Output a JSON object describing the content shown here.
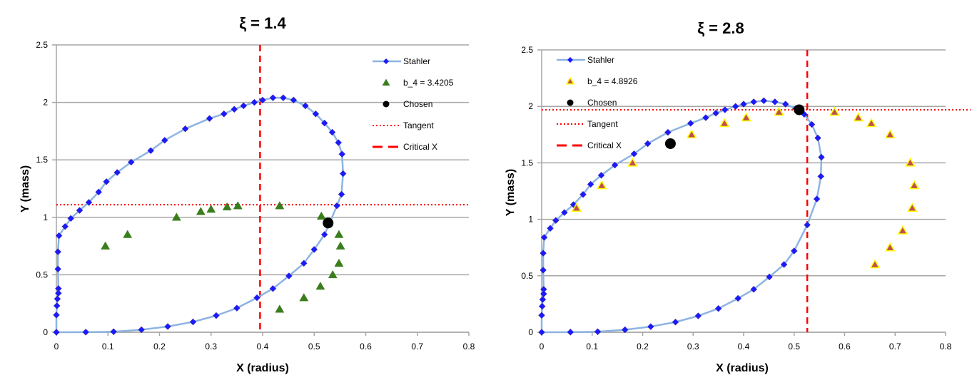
{
  "chart_data": [
    {
      "type": "scatter",
      "title": "ξ = 1.4",
      "xlabel": "X (radius)",
      "ylabel": "Y (mass)",
      "xlim": [
        0,
        0.8
      ],
      "ylim": [
        0,
        2.5
      ],
      "xticks": [
        "0",
        "0.1",
        "0.2",
        "0.3",
        "0.4",
        "0.5",
        "0.6",
        "0.7",
        "0.8"
      ],
      "yticks": [
        "0",
        "0.5",
        "1",
        "1.5",
        "2",
        "2.5"
      ],
      "grid": "horizontal",
      "legend_position": "top-right",
      "legend": [
        "Stahler",
        "b_4 = 3.4205",
        "Chosen",
        "Tangent",
        "Critical X"
      ],
      "series": [
        {
          "name": "Stahler",
          "style": "line-diamond",
          "color": "#1a1aff",
          "line_color": "#8db4e2",
          "points": [
            [
              0,
              0
            ],
            [
              0.057,
              0.001
            ],
            [
              0.111,
              0.005
            ],
            [
              0.165,
              0.022
            ],
            [
              0.216,
              0.05
            ],
            [
              0.265,
              0.09
            ],
            [
              0.31,
              0.145
            ],
            [
              0.35,
              0.21
            ],
            [
              0.389,
              0.3
            ],
            [
              0.42,
              0.38
            ],
            [
              0.451,
              0.49
            ],
            [
              0.48,
              0.6
            ],
            [
              0.5,
              0.72
            ],
            [
              0.52,
              0.85
            ],
            [
              0.53,
              0.95
            ],
            [
              0.544,
              1.1
            ],
            [
              0.553,
              1.2
            ],
            [
              0.556,
              1.38
            ],
            [
              0.554,
              1.55
            ],
            [
              0.547,
              1.65
            ],
            [
              0.535,
              1.74
            ],
            [
              0.52,
              1.82
            ],
            [
              0.503,
              1.9
            ],
            [
              0.483,
              1.97
            ],
            [
              0.46,
              2.02
            ],
            [
              0.44,
              2.04
            ],
            [
              0.42,
              2.04
            ],
            [
              0.4,
              2.02
            ],
            [
              0.384,
              2.0
            ],
            [
              0.363,
              1.97
            ],
            [
              0.345,
              1.94
            ],
            [
              0.325,
              1.9
            ],
            [
              0.297,
              1.86
            ],
            [
              0.25,
              1.77
            ],
            [
              0.21,
              1.67
            ],
            [
              0.183,
              1.58
            ],
            [
              0.145,
              1.48
            ],
            [
              0.118,
              1.39
            ],
            [
              0.097,
              1.31
            ],
            [
              0.082,
              1.22
            ],
            [
              0.063,
              1.13
            ],
            [
              0.045,
              1.06
            ],
            [
              0.028,
              0.99
            ],
            [
              0.017,
              0.92
            ],
            [
              0.005,
              0.84
            ],
            [
              0.003,
              0.7
            ],
            [
              0.003,
              0.55
            ],
            [
              0.004,
              0.38
            ],
            [
              0.004,
              0.34
            ],
            [
              0.002,
              0.29
            ],
            [
              0.001,
              0.23
            ],
            [
              0,
              0.15
            ],
            [
              0,
              0
            ]
          ]
        },
        {
          "name": "b_4 = 3.4205",
          "style": "triangle",
          "color": "#3a7d1c",
          "points": [
            [
              0.095,
              0.75
            ],
            [
              0.138,
              0.85
            ],
            [
              0.233,
              1.0
            ],
            [
              0.28,
              1.05
            ],
            [
              0.3,
              1.07
            ],
            [
              0.331,
              1.09
            ],
            [
              0.352,
              1.1
            ],
            [
              0.433,
              1.1
            ],
            [
              0.514,
              1.01
            ],
            [
              0.548,
              0.85
            ],
            [
              0.551,
              0.75
            ],
            [
              0.548,
              0.6
            ],
            [
              0.536,
              0.5
            ],
            [
              0.512,
              0.4
            ],
            [
              0.48,
              0.3
            ],
            [
              0.433,
              0.2
            ]
          ]
        },
        {
          "name": "Chosen",
          "style": "circle",
          "color": "#000000",
          "points": [
            [
              0.527,
              0.95
            ]
          ]
        },
        {
          "name": "Tangent",
          "style": "dotted-hline",
          "color": "#ff0000",
          "y": 1.11
        },
        {
          "name": "Critical X",
          "style": "dashed-vline",
          "color": "#ff0000",
          "x": 0.395
        }
      ]
    },
    {
      "type": "scatter",
      "title": "ξ = 2.8",
      "xlabel": "X (radius)",
      "ylabel": "Y (mass)",
      "xlim": [
        0,
        0.8
      ],
      "ylim": [
        0,
        2.5
      ],
      "xticks": [
        "0",
        "0.1",
        "0.2",
        "0.3",
        "0.4",
        "0.5",
        "0.6",
        "0.7",
        "0.8"
      ],
      "yticks": [
        "0",
        "0.5",
        "1",
        "1.5",
        "2",
        "2.5"
      ],
      "grid": "horizontal",
      "legend_position": "top-left",
      "legend": [
        "Stahler",
        "b_4 = 4.8926",
        "Chosen",
        "Tangent",
        "Critical X"
      ],
      "series": [
        {
          "name": "Stahler",
          "style": "line-diamond",
          "color": "#1a1aff",
          "line_color": "#8db4e2",
          "points": [
            [
              0,
              0
            ],
            [
              0.057,
              0.001
            ],
            [
              0.111,
              0.005
            ],
            [
              0.165,
              0.022
            ],
            [
              0.216,
              0.05
            ],
            [
              0.265,
              0.09
            ],
            [
              0.31,
              0.145
            ],
            [
              0.35,
              0.21
            ],
            [
              0.389,
              0.3
            ],
            [
              0.42,
              0.38
            ],
            [
              0.451,
              0.49
            ],
            [
              0.48,
              0.6
            ],
            [
              0.5,
              0.72
            ],
            [
              0.526,
              0.95
            ],
            [
              0.545,
              1.18
            ],
            [
              0.553,
              1.38
            ],
            [
              0.554,
              1.55
            ],
            [
              0.547,
              1.72
            ],
            [
              0.535,
              1.84
            ],
            [
              0.52,
              1.93
            ],
            [
              0.503,
              1.98
            ],
            [
              0.483,
              2.02
            ],
            [
              0.462,
              2.04
            ],
            [
              0.44,
              2.05
            ],
            [
              0.42,
              2.04
            ],
            [
              0.4,
              2.02
            ],
            [
              0.384,
              2.0
            ],
            [
              0.363,
              1.97
            ],
            [
              0.345,
              1.94
            ],
            [
              0.325,
              1.9
            ],
            [
              0.295,
              1.85
            ],
            [
              0.25,
              1.77
            ],
            [
              0.21,
              1.67
            ],
            [
              0.183,
              1.58
            ],
            [
              0.145,
              1.48
            ],
            [
              0.118,
              1.39
            ],
            [
              0.097,
              1.31
            ],
            [
              0.082,
              1.22
            ],
            [
              0.063,
              1.13
            ],
            [
              0.045,
              1.06
            ],
            [
              0.028,
              0.99
            ],
            [
              0.017,
              0.92
            ],
            [
              0.005,
              0.84
            ],
            [
              0.003,
              0.7
            ],
            [
              0.003,
              0.55
            ],
            [
              0.004,
              0.38
            ],
            [
              0.004,
              0.34
            ],
            [
              0.002,
              0.29
            ],
            [
              0.001,
              0.23
            ],
            [
              0,
              0.15
            ],
            [
              0,
              0
            ]
          ]
        },
        {
          "name": "b_4 = 4.8926",
          "style": "triangle",
          "color": "#c0504d",
          "edge": "#ffff00",
          "points": [
            [
              0.069,
              1.1
            ],
            [
              0.119,
              1.3
            ],
            [
              0.18,
              1.5
            ],
            [
              0.297,
              1.75
            ],
            [
              0.362,
              1.85
            ],
            [
              0.405,
              1.9
            ],
            [
              0.47,
              1.95
            ],
            [
              0.58,
              1.95
            ],
            [
              0.627,
              1.9
            ],
            [
              0.653,
              1.85
            ],
            [
              0.69,
              1.75
            ],
            [
              0.73,
              1.5
            ],
            [
              0.738,
              1.3
            ],
            [
              0.734,
              1.1
            ],
            [
              0.715,
              0.9
            ],
            [
              0.69,
              0.75
            ],
            [
              0.66,
              0.6
            ]
          ]
        },
        {
          "name": "Chosen",
          "style": "circle",
          "color": "#000000",
          "points": [
            [
              0.255,
              1.67
            ],
            [
              0.51,
              1.97
            ]
          ]
        },
        {
          "name": "Tangent",
          "style": "dotted-hline",
          "color": "#ff0000",
          "y": 1.97
        },
        {
          "name": "Critical X",
          "style": "dashed-vline",
          "color": "#ff0000",
          "x": 0.526
        }
      ]
    }
  ]
}
